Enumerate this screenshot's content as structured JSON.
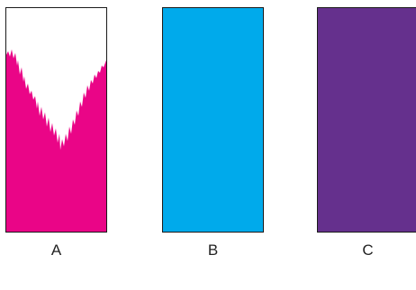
{
  "panels": [
    {
      "label": "A",
      "fill_color": "#ea0587",
      "fill_style": "ragged partial fill"
    },
    {
      "label": "B",
      "fill_color": "#00aaeb",
      "fill_style": "solid"
    },
    {
      "label": "C",
      "fill_color": "#65308d",
      "fill_style": "solid"
    }
  ],
  "colors": {
    "background": "#ffffff",
    "border": "#1a1a1a",
    "label_text": "#222222"
  }
}
